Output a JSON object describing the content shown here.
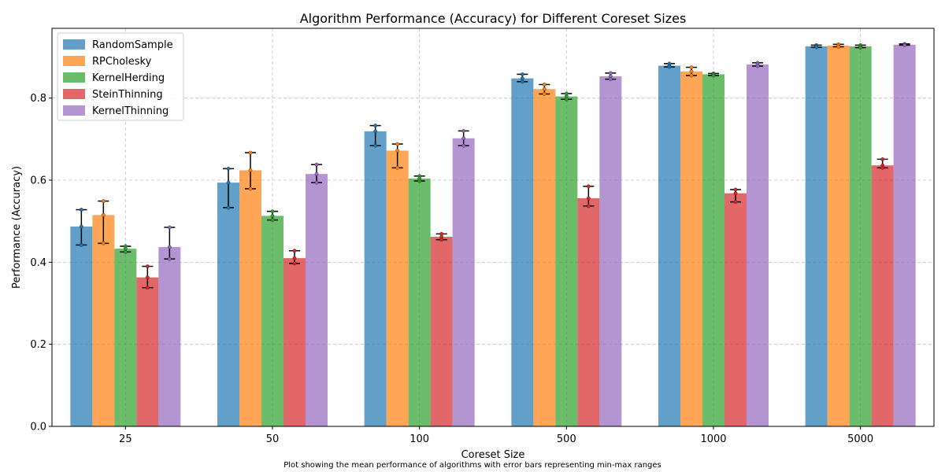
{
  "chart_data": {
    "type": "bar",
    "title": "Algorithm Performance (Accuracy) for Different Coreset Sizes",
    "xlabel": "Coreset Size",
    "ylabel": "Performance (Accuracy)",
    "caption": "Plot showing the mean performance of algorithms with error bars representing min-max ranges",
    "categories": [
      "25",
      "50",
      "100",
      "500",
      "1000",
      "5000"
    ],
    "ylim": [
      0,
      0.97
    ],
    "yticks": [
      "0.0",
      "0.2",
      "0.4",
      "0.6",
      "0.8"
    ],
    "grid": true,
    "legend_position": "top-left",
    "series": [
      {
        "name": "RandomSample",
        "color": "#1f77b4",
        "values": [
          0.487,
          0.594,
          0.719,
          0.848,
          0.879,
          0.926
        ],
        "min": [
          0.442,
          0.533,
          0.684,
          0.84,
          0.876,
          0.924
        ],
        "max": [
          0.528,
          0.628,
          0.733,
          0.858,
          0.884,
          0.929
        ]
      },
      {
        "name": "RPCholesky",
        "color": "#ff7f0e",
        "values": [
          0.515,
          0.624,
          0.672,
          0.822,
          0.865,
          0.928
        ],
        "min": [
          0.446,
          0.579,
          0.63,
          0.81,
          0.855,
          0.925
        ],
        "max": [
          0.549,
          0.667,
          0.688,
          0.833,
          0.875,
          0.931
        ]
      },
      {
        "name": "KernelHerding",
        "color": "#2ca02c",
        "values": [
          0.433,
          0.513,
          0.604,
          0.804,
          0.858,
          0.926
        ],
        "min": [
          0.425,
          0.503,
          0.598,
          0.797,
          0.855,
          0.923
        ],
        "max": [
          0.439,
          0.524,
          0.61,
          0.811,
          0.86,
          0.929
        ]
      },
      {
        "name": "SteinThinning",
        "color": "#d62728",
        "values": [
          0.363,
          0.41,
          0.462,
          0.556,
          0.568,
          0.636
        ],
        "min": [
          0.338,
          0.397,
          0.455,
          0.537,
          0.547,
          0.63
        ],
        "max": [
          0.39,
          0.428,
          0.469,
          0.585,
          0.577,
          0.651
        ]
      },
      {
        "name": "KernelThinning",
        "color": "#9467bd",
        "values": [
          0.437,
          0.615,
          0.702,
          0.853,
          0.882,
          0.93
        ],
        "min": [
          0.408,
          0.594,
          0.684,
          0.846,
          0.878,
          0.929
        ],
        "max": [
          0.485,
          0.638,
          0.72,
          0.861,
          0.886,
          0.932
        ]
      }
    ]
  }
}
